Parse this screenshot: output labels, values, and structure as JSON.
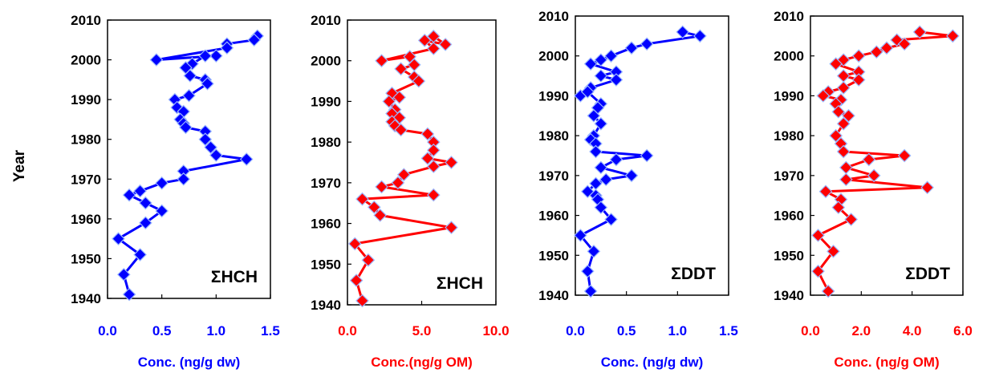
{
  "ylabel": "Year",
  "chart_data": [
    {
      "type": "line",
      "annotation": "ΣHCH",
      "xlabel": "Conc. (ng/g dw)",
      "color": "#0000ff",
      "xlim": [
        0,
        1.5
      ],
      "xticks": [
        "0.0",
        "0.5",
        "1.0",
        "1.5"
      ],
      "xtick_values": [
        0,
        0.5,
        1.0,
        1.5
      ],
      "ylim": [
        1940,
        2010
      ],
      "yticks": [
        1940,
        1950,
        1960,
        1970,
        1980,
        1990,
        2000,
        2010
      ],
      "x": [
        1.38,
        1.35,
        1.1,
        1.1,
        0.45,
        1.0,
        0.9,
        0.78,
        0.72,
        0.76,
        0.9,
        0.92,
        0.75,
        0.62,
        0.64,
        0.7,
        0.67,
        0.7,
        0.72,
        0.9,
        0.9,
        0.95,
        1.0,
        1.28,
        0.7,
        0.7,
        0.5,
        0.3,
        0.2,
        0.35,
        0.5,
        0.35,
        0.1,
        0.3,
        0.15,
        0.2
      ],
      "y": [
        2006,
        2005,
        2004,
        2003,
        2000,
        2001,
        2001,
        1999,
        1998,
        1996,
        1995,
        1994,
        1991,
        1990,
        1988,
        1987,
        1985,
        1984,
        1983,
        1982,
        1980,
        1978,
        1976,
        1975,
        1972,
        1970,
        1969,
        1967,
        1966,
        1964,
        1962,
        1959,
        1955,
        1951,
        1946,
        1941
      ]
    },
    {
      "type": "line",
      "annotation": "ΣHCH",
      "xlabel": "Conc.(ng/g OM)",
      "color": "#ff0000",
      "xlim": [
        0,
        10
      ],
      "xticks": [
        "0.0",
        "5.0",
        "10.0"
      ],
      "xtick_values": [
        0,
        5,
        10
      ],
      "ylim": [
        1940,
        2010
      ],
      "yticks": [
        1940,
        1950,
        1960,
        1970,
        1980,
        1990,
        2000,
        2010
      ],
      "x": [
        5.8,
        6.6,
        5.2,
        5.8,
        2.3,
        4.2,
        4.5,
        3.6,
        4.5,
        4.8,
        3.0,
        3.5,
        2.8,
        3.2,
        3.0,
        3.5,
        3.0,
        3.2,
        3.6,
        5.4,
        5.8,
        5.8,
        5.4,
        7.0,
        5.8,
        3.8,
        3.4,
        2.3,
        5.8,
        1.0,
        1.8,
        2.2,
        7.0,
        0.5,
        1.4,
        0.6,
        1.0
      ],
      "y": [
        2006,
        2004,
        2005,
        2003,
        2000,
        2001,
        1999,
        1998,
        1996,
        1995,
        1992,
        1991,
        1990,
        1988,
        1987,
        1986,
        1985,
        1984,
        1983,
        1982,
        1980,
        1978,
        1976,
        1975,
        1974,
        1972,
        1970,
        1969,
        1967,
        1966,
        1964,
        1962,
        1959,
        1955,
        1951,
        1946,
        1941
      ]
    },
    {
      "type": "line",
      "annotation": "ΣDDT",
      "xlabel": "Conc. (ng/g dw)",
      "color": "#0000ff",
      "xlim": [
        0,
        1.5
      ],
      "xticks": [
        "0.0",
        "0.5",
        "1.0",
        "1.5"
      ],
      "xtick_values": [
        0,
        0.5,
        1.0,
        1.5
      ],
      "ylim": [
        1940,
        2010
      ],
      "yticks": [
        1940,
        1950,
        1960,
        1970,
        1980,
        1990,
        2000,
        2010
      ],
      "x": [
        1.05,
        1.22,
        0.7,
        0.55,
        0.35,
        0.25,
        0.15,
        0.4,
        0.25,
        0.4,
        0.15,
        0.05,
        0.12,
        0.25,
        0.22,
        0.18,
        0.25,
        0.18,
        0.15,
        0.2,
        0.2,
        0.7,
        0.4,
        0.25,
        0.55,
        0.3,
        0.2,
        0.12,
        0.2,
        0.22,
        0.25,
        0.35,
        0.05,
        0.18,
        0.12,
        0.15
      ],
      "y": [
        2006,
        2005,
        2003,
        2002,
        2000,
        1999,
        1998,
        1996,
        1995,
        1994,
        1992,
        1990,
        1991,
        1988,
        1987,
        1985,
        1983,
        1980,
        1979,
        1978,
        1976,
        1975,
        1974,
        1972,
        1970,
        1969,
        1968,
        1966,
        1965,
        1964,
        1962,
        1959,
        1955,
        1951,
        1946,
        1941
      ]
    },
    {
      "type": "line",
      "annotation": "ΣDDT",
      "xlabel": "Conc. (ng/g OM)",
      "color": "#ff0000",
      "xlim": [
        0,
        6.0
      ],
      "xticks": [
        "0.0",
        "2.0",
        "4.0",
        "6.0"
      ],
      "xtick_values": [
        0,
        2,
        4,
        6
      ],
      "ylim": [
        1940,
        2010
      ],
      "yticks": [
        1940,
        1950,
        1960,
        1970,
        1980,
        1990,
        2000,
        2010
      ],
      "x": [
        4.3,
        5.6,
        3.4,
        3.7,
        3.0,
        2.6,
        1.9,
        1.3,
        1.0,
        1.9,
        1.3,
        1.9,
        1.3,
        0.7,
        0.5,
        1.2,
        1.0,
        1.1,
        1.5,
        1.3,
        1.0,
        1.2,
        1.3,
        3.7,
        2.3,
        1.4,
        2.5,
        1.4,
        4.6,
        0.6,
        1.2,
        1.1,
        1.6,
        0.3,
        0.9,
        0.3,
        0.7
      ],
      "y": [
        2006,
        2005,
        2004,
        2003,
        2002,
        2001,
        2000,
        1999,
        1998,
        1996,
        1995,
        1994,
        1992,
        1991,
        1990,
        1989,
        1988,
        1986,
        1985,
        1983,
        1980,
        1978,
        1976,
        1975,
        1974,
        1972,
        1970,
        1969,
        1967,
        1966,
        1964,
        1962,
        1959,
        1955,
        1951,
        1946,
        1941
      ]
    }
  ]
}
